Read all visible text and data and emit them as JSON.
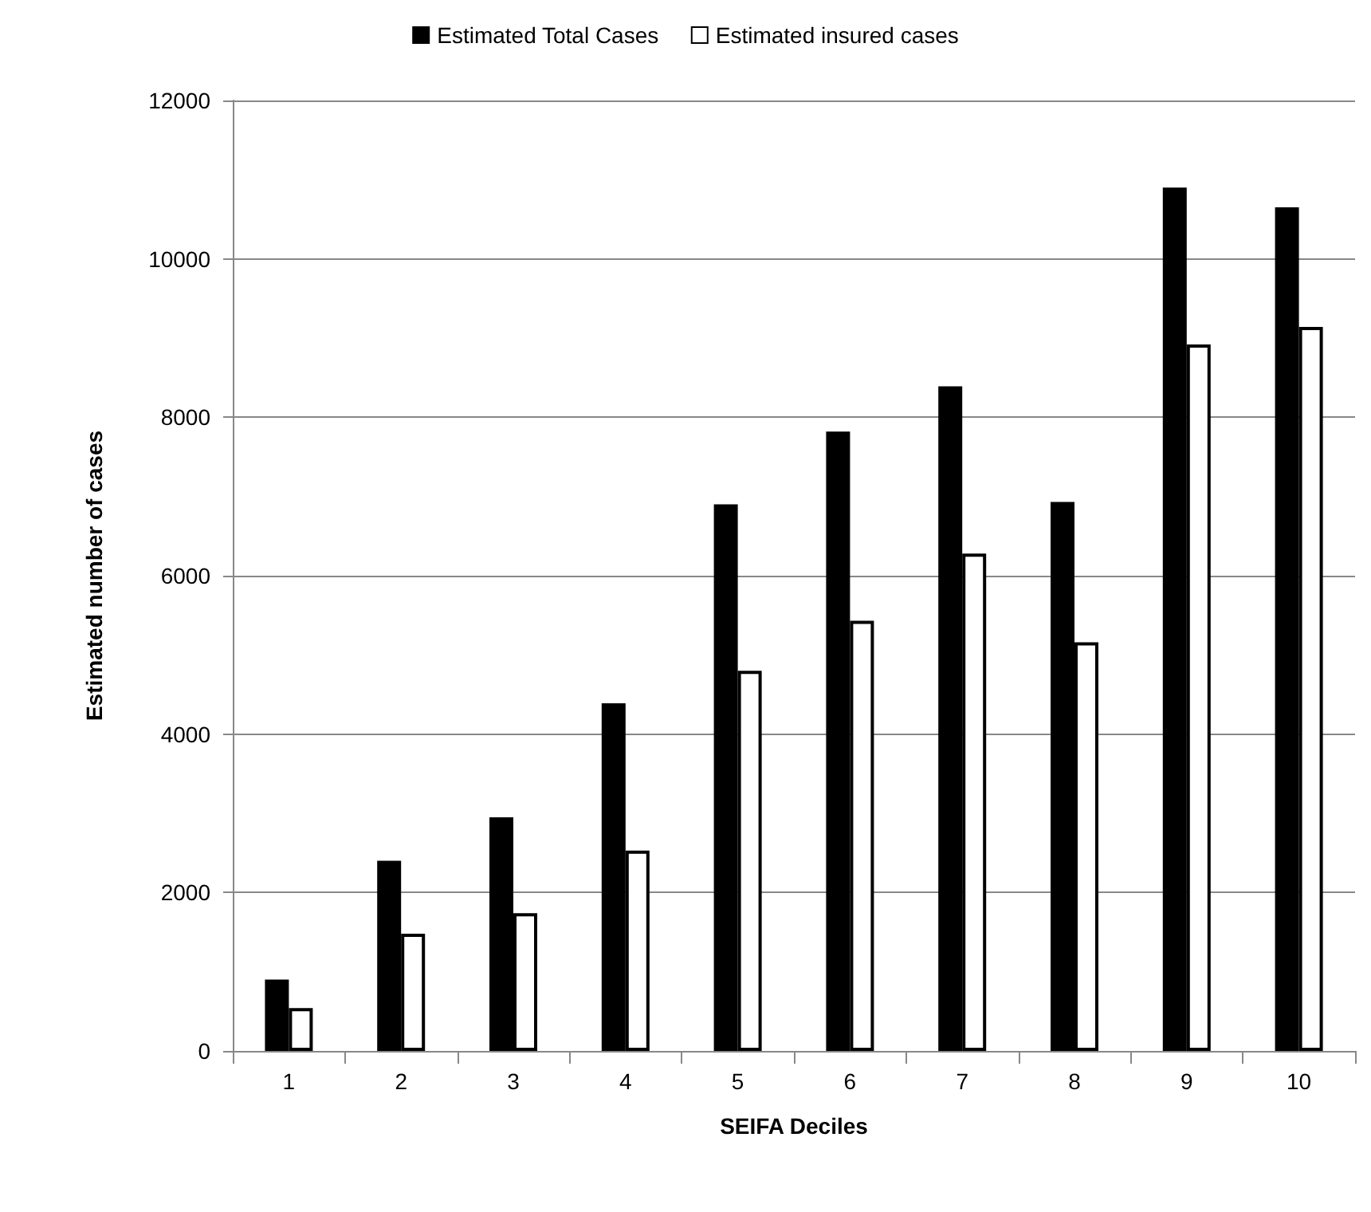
{
  "chart_data": {
    "type": "bar",
    "xlabel": "SEIFA Deciles",
    "ylabel": "Estimated number of cases",
    "categories": [
      "1",
      "2",
      "3",
      "4",
      "5",
      "6",
      "7",
      "8",
      "9",
      "10"
    ],
    "series": [
      {
        "name": "Estimated Total Cases",
        "color": "#000000",
        "values": [
          900,
          2400,
          2950,
          4390,
          6900,
          7820,
          8390,
          6930,
          10900,
          10650
        ]
      },
      {
        "name": "Estimated insured cases",
        "color": "#ffffff",
        "values": [
          540,
          1480,
          1740,
          2530,
          4800,
          5430,
          6280,
          5160,
          8920,
          9140
        ]
      }
    ],
    "ylim": [
      0,
      12000
    ],
    "yticks": [
      0,
      2000,
      4000,
      6000,
      8000,
      10000,
      12000
    ],
    "grid": "y",
    "legend": "top"
  }
}
